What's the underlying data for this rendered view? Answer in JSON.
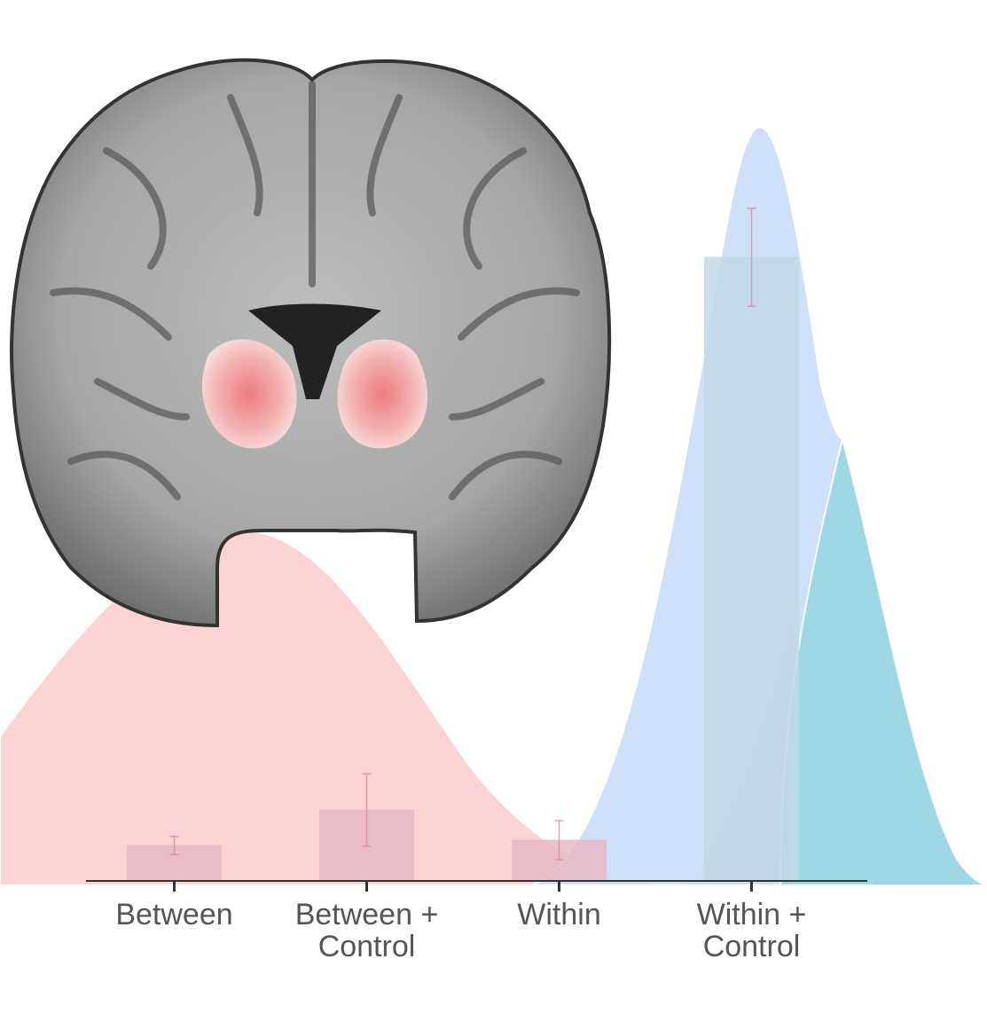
{
  "chart_data": {
    "type": "bar",
    "categories": [
      "Between",
      "Between + Control",
      "Within",
      "Within + Control"
    ],
    "values": [
      0.047,
      0.094,
      0.054,
      0.827
    ],
    "errors": [
      0.012,
      0.048,
      0.026,
      0.065
    ],
    "colors": [
      "#e8b9c6",
      "#e8b9c6",
      "#e8b9c6",
      "#c2d9e6"
    ],
    "ylim": [
      0,
      1
    ]
  }
}
